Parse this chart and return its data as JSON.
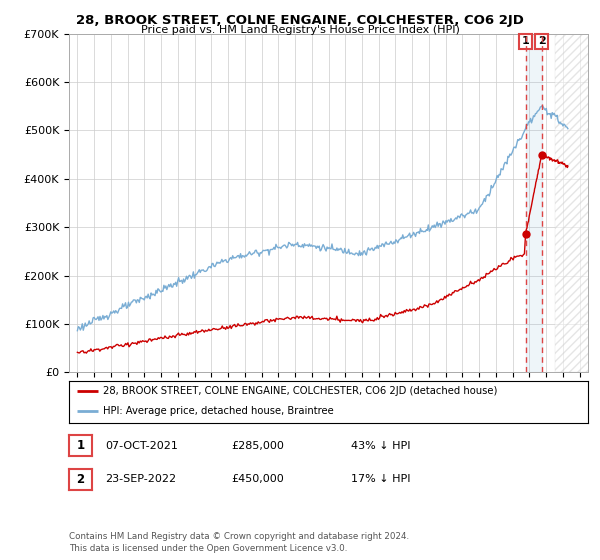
{
  "title": "28, BROOK STREET, COLNE ENGAINE, COLCHESTER, CO6 2JD",
  "subtitle": "Price paid vs. HM Land Registry's House Price Index (HPI)",
  "ylim": [
    0,
    700000
  ],
  "yticks": [
    0,
    100000,
    200000,
    300000,
    400000,
    500000,
    600000,
    700000
  ],
  "ytick_labels": [
    "£0",
    "£100K",
    "£200K",
    "£300K",
    "£400K",
    "£500K",
    "£600K",
    "£700K"
  ],
  "xlim_start": 1994.5,
  "xlim_end": 2025.5,
  "hpi_color": "#7aadd4",
  "price_color": "#cc0000",
  "dashed_color": "#dd4444",
  "transaction1_date": "07-OCT-2021",
  "transaction1_price": 285000,
  "transaction1_hpi_pct": "43% ↓ HPI",
  "transaction1_year": 2021.77,
  "transaction2_date": "23-SEP-2022",
  "transaction2_price": 450000,
  "transaction2_hpi_pct": "17% ↓ HPI",
  "transaction2_year": 2022.73,
  "legend_label1": "28, BROOK STREET, COLNE ENGAINE, COLCHESTER, CO6 2JD (detached house)",
  "legend_label2": "HPI: Average price, detached house, Braintree",
  "footer": "Contains HM Land Registry data © Crown copyright and database right 2024.\nThis data is licensed under the Open Government Licence v3.0.",
  "background_color": "#ffffff",
  "grid_color": "#cccccc",
  "hatch_start": 2023.5
}
